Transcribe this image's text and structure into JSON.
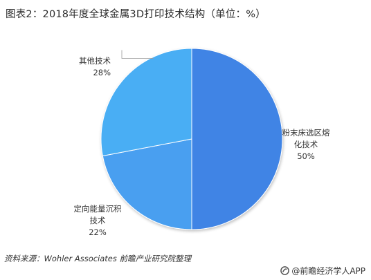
{
  "title": "图表2：2018年度全球金属3D打印技术结构（单位：%）",
  "source": "资料来源：Wohler Associates 前瞻产业研究院整理",
  "brand": "@前瞻经济学人APP",
  "colors": {
    "powder_bed": "#3f84e5",
    "deposition": "#4a9ff0",
    "other": "#4aaef4",
    "leader": "#999999"
  },
  "chart_data": {
    "type": "pie",
    "title": "图表2：2018年度全球金属3D打印技术结构（单位：%）",
    "unit": "%",
    "slices": [
      {
        "label_lines": [
          "粉末床选区熔",
          "化技术"
        ],
        "value": 50,
        "value_label": "50%"
      },
      {
        "label_lines": [
          "定向能量沉积",
          "技术"
        ],
        "value": 22,
        "value_label": "22%"
      },
      {
        "label_lines": [
          "其他技术"
        ],
        "value": 28,
        "value_label": "28%"
      }
    ]
  }
}
